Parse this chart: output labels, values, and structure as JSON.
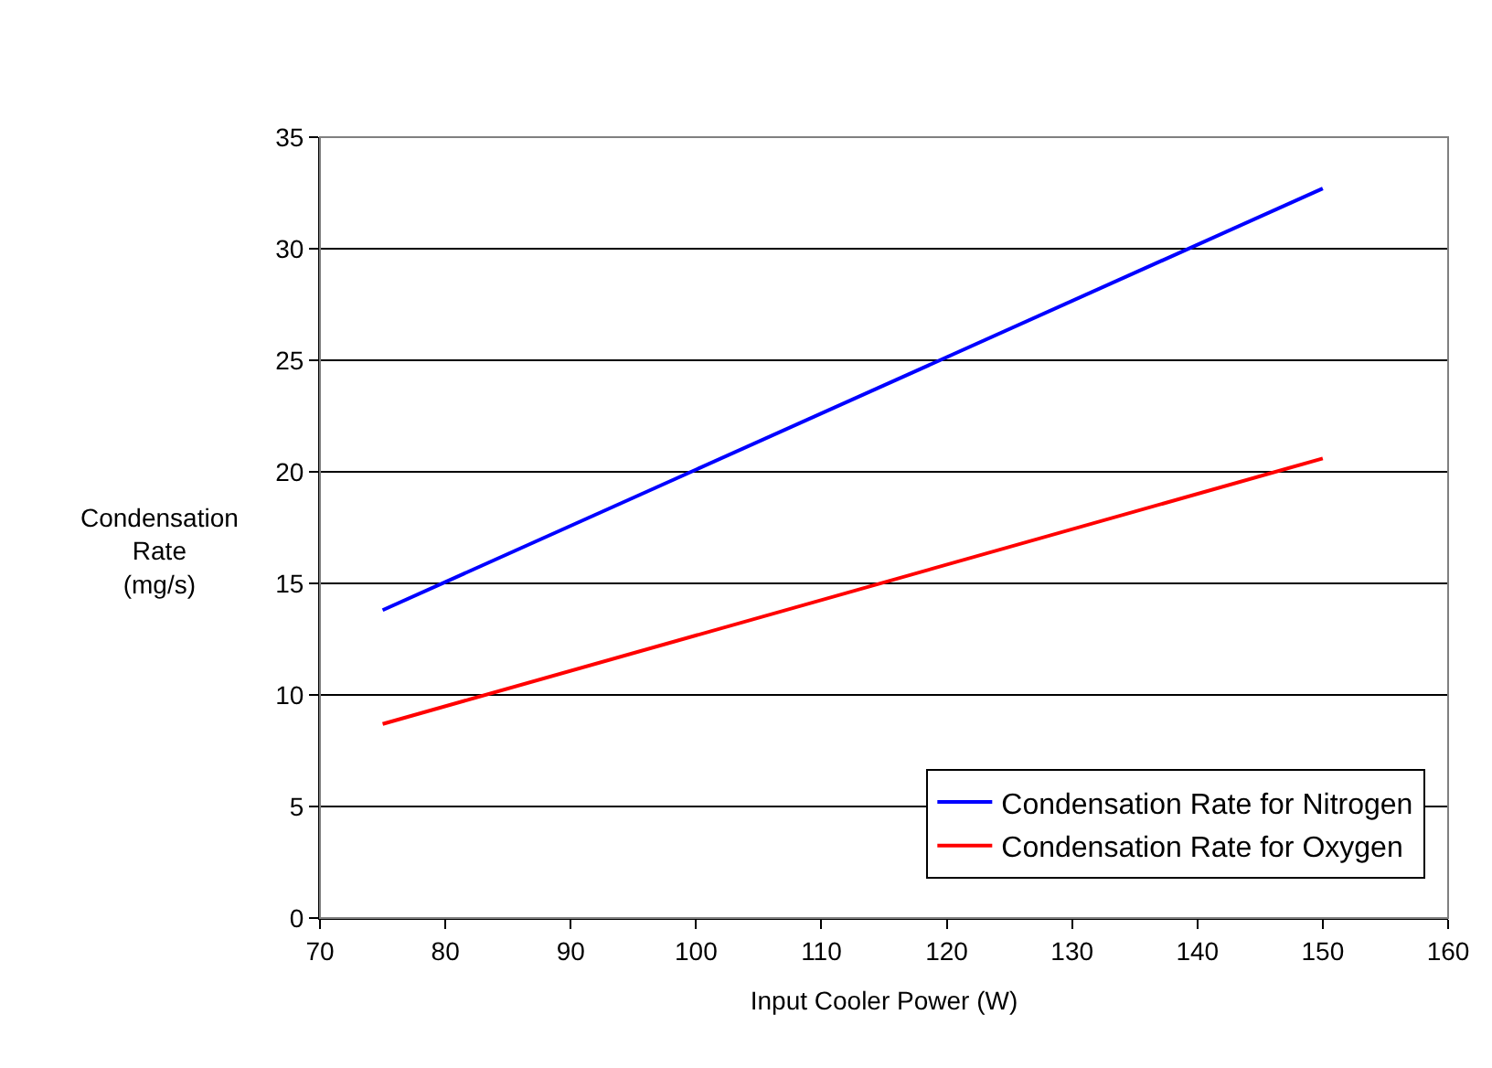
{
  "chart_data": {
    "type": "line",
    "xlabel": "Input Cooler Power (W)",
    "ylabel": "Condensation\nRate\n(mg/s)",
    "series": [
      {
        "name": "Condensation Rate for Nitrogen",
        "color": "#0000ff",
        "values": [
          13.8,
          32.7
        ]
      },
      {
        "name": "Condensation Rate for Oxygen",
        "color": "#ff0000",
        "values": [
          8.7,
          20.6
        ]
      }
    ],
    "x": [
      75,
      150
    ],
    "xlim": [
      70,
      160
    ],
    "xticks": [
      70,
      80,
      90,
      100,
      110,
      120,
      130,
      140,
      150,
      160
    ],
    "ylim": [
      0,
      35
    ],
    "yticks": [
      0,
      5,
      10,
      15,
      20,
      25,
      30,
      35
    ],
    "grid": "y",
    "legend": "bottom right",
    "marker": "none",
    "line_style": "solid"
  }
}
